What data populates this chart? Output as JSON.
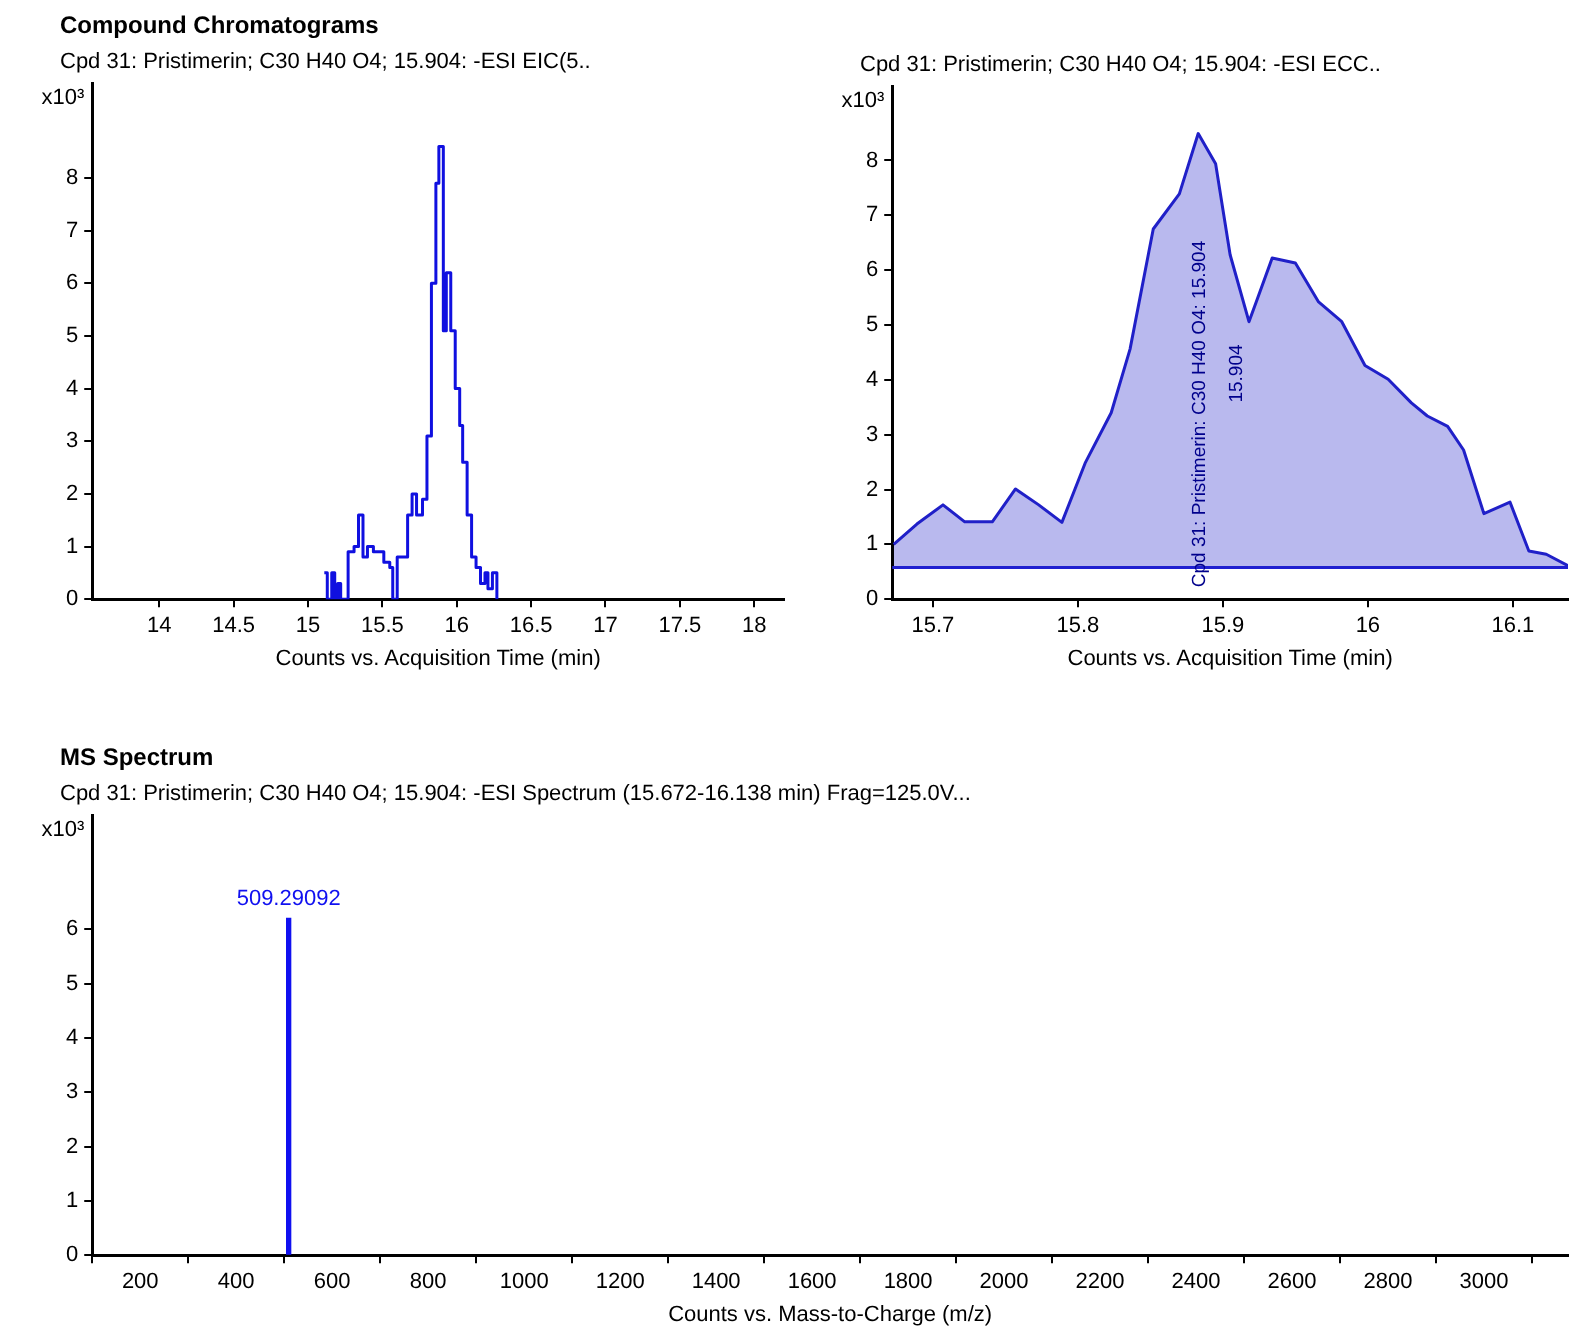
{
  "chart_data": [
    {
      "type": "step",
      "title": "Compound Chromatograms",
      "subtitle": "Cpd 31: Pristimerin; C30 H40 O4; 15.904: -ESI EIC(5..",
      "xlabel": "Counts vs. Acquisition Time (min)",
      "ylabel": "x10³",
      "xlim": [
        13.55,
        18.2
      ],
      "xticks": [
        14,
        14.5,
        15,
        15.5,
        16,
        16.5,
        17,
        17.5,
        18
      ],
      "ylim": [
        0,
        9.8
      ],
      "yticks": [
        0,
        1,
        2,
        3,
        4,
        5,
        6,
        7,
        8
      ],
      "grid": false,
      "series": [
        {
          "color": "#1010e0",
          "x": [
            15.11,
            15.13,
            15.16,
            15.18,
            15.2,
            15.22,
            15.24,
            15.27,
            15.31,
            15.34,
            15.37,
            15.4,
            15.44,
            15.51,
            15.55,
            15.57,
            15.6,
            15.67,
            15.7,
            15.73,
            15.77,
            15.8,
            15.83,
            15.86,
            15.88,
            15.91,
            15.93,
            15.96,
            15.99,
            16.02,
            16.04,
            16.07,
            16.1,
            16.13,
            16.16,
            16.19,
            16.21,
            16.24,
            16.27
          ],
          "values": [
            0.5,
            0,
            0.5,
            0,
            0.3,
            0,
            0,
            0.9,
            1,
            1.6,
            0.8,
            1,
            0.9,
            0.7,
            0.6,
            0,
            0.8,
            1.6,
            2,
            1.6,
            1.9,
            3.1,
            6,
            7.9,
            8.6,
            5.1,
            6.2,
            5.1,
            4,
            3.3,
            2.6,
            1.6,
            0.8,
            0.6,
            0.3,
            0.5,
            0.2,
            0.5,
            0
          ]
        }
      ]
    },
    {
      "type": "area",
      "subtitle": "Cpd 31: Pristimerin; C30 H40 O4; 15.904: -ESI ECC..",
      "xlabel": "Counts vs. Acquisition Time (min)",
      "ylabel": "x10³",
      "xlim": [
        15.672,
        16.138
      ],
      "xticks": [
        15.7,
        15.8,
        15.9,
        16,
        16.1
      ],
      "ylim": [
        0,
        9.35
      ],
      "yticks": [
        0,
        1,
        2,
        3,
        4,
        5,
        6,
        7,
        8
      ],
      "grid": false,
      "ref_lines": [
        {
          "axis": "y",
          "value": 0.58,
          "color": "#2020d0"
        }
      ],
      "annotations": [
        "Cpd 31: Pristimerin: C30 H40 O4: 15.904",
        "15.904"
      ],
      "series": [
        {
          "color": "#2020c8",
          "x": [
            15.673,
            15.689,
            15.707,
            15.722,
            15.741,
            15.757,
            15.773,
            15.789,
            15.805,
            15.823,
            15.836,
            15.852,
            15.87,
            15.883,
            15.895,
            15.905,
            15.918,
            15.923,
            15.934,
            15.95,
            15.966,
            15.982,
            15.998,
            16.014,
            16.03,
            16.041,
            16.055,
            16.066,
            16.08,
            16.098,
            16.111,
            16.123,
            16.138
          ],
          "values": [
            1,
            1.37,
            1.72,
            1.41,
            1.41,
            2.01,
            1.72,
            1.4,
            2.48,
            3.4,
            4.56,
            6.75,
            7.39,
            8.49,
            7.94,
            6.28,
            5.06,
            5.42,
            6.22,
            6.13,
            5.42,
            5.06,
            4.26,
            4.01,
            3.58,
            3.34,
            3.15,
            2.72,
            1.56,
            1.77,
            0.88,
            0.82,
            0.61
          ]
        }
      ]
    },
    {
      "type": "bar",
      "title": "MS Spectrum",
      "subtitle": "Cpd 31: Pristimerin; C30 H40 O4; 15.904: -ESI Spectrum (15.672-16.138 min) Frag=125.0V...",
      "xlabel": "Counts vs. Mass-to-Charge (m/z)",
      "ylabel": "x10³",
      "xlim": [
        100,
        3175
      ],
      "xticks": [
        200,
        400,
        600,
        800,
        1000,
        1200,
        1400,
        1600,
        1800,
        2000,
        2200,
        2400,
        2600,
        2800,
        3000
      ],
      "ylim": [
        0,
        8.1
      ],
      "yticks": [
        0,
        1,
        2,
        3,
        4,
        5,
        6
      ],
      "grid": false,
      "series": [
        {
          "color": "#1010f0",
          "x": [
            509.29092
          ],
          "values": [
            6.2
          ]
        }
      ],
      "annotations": [
        {
          "text": "509.29092",
          "x": 509.29092,
          "y": 6.2
        }
      ]
    }
  ]
}
